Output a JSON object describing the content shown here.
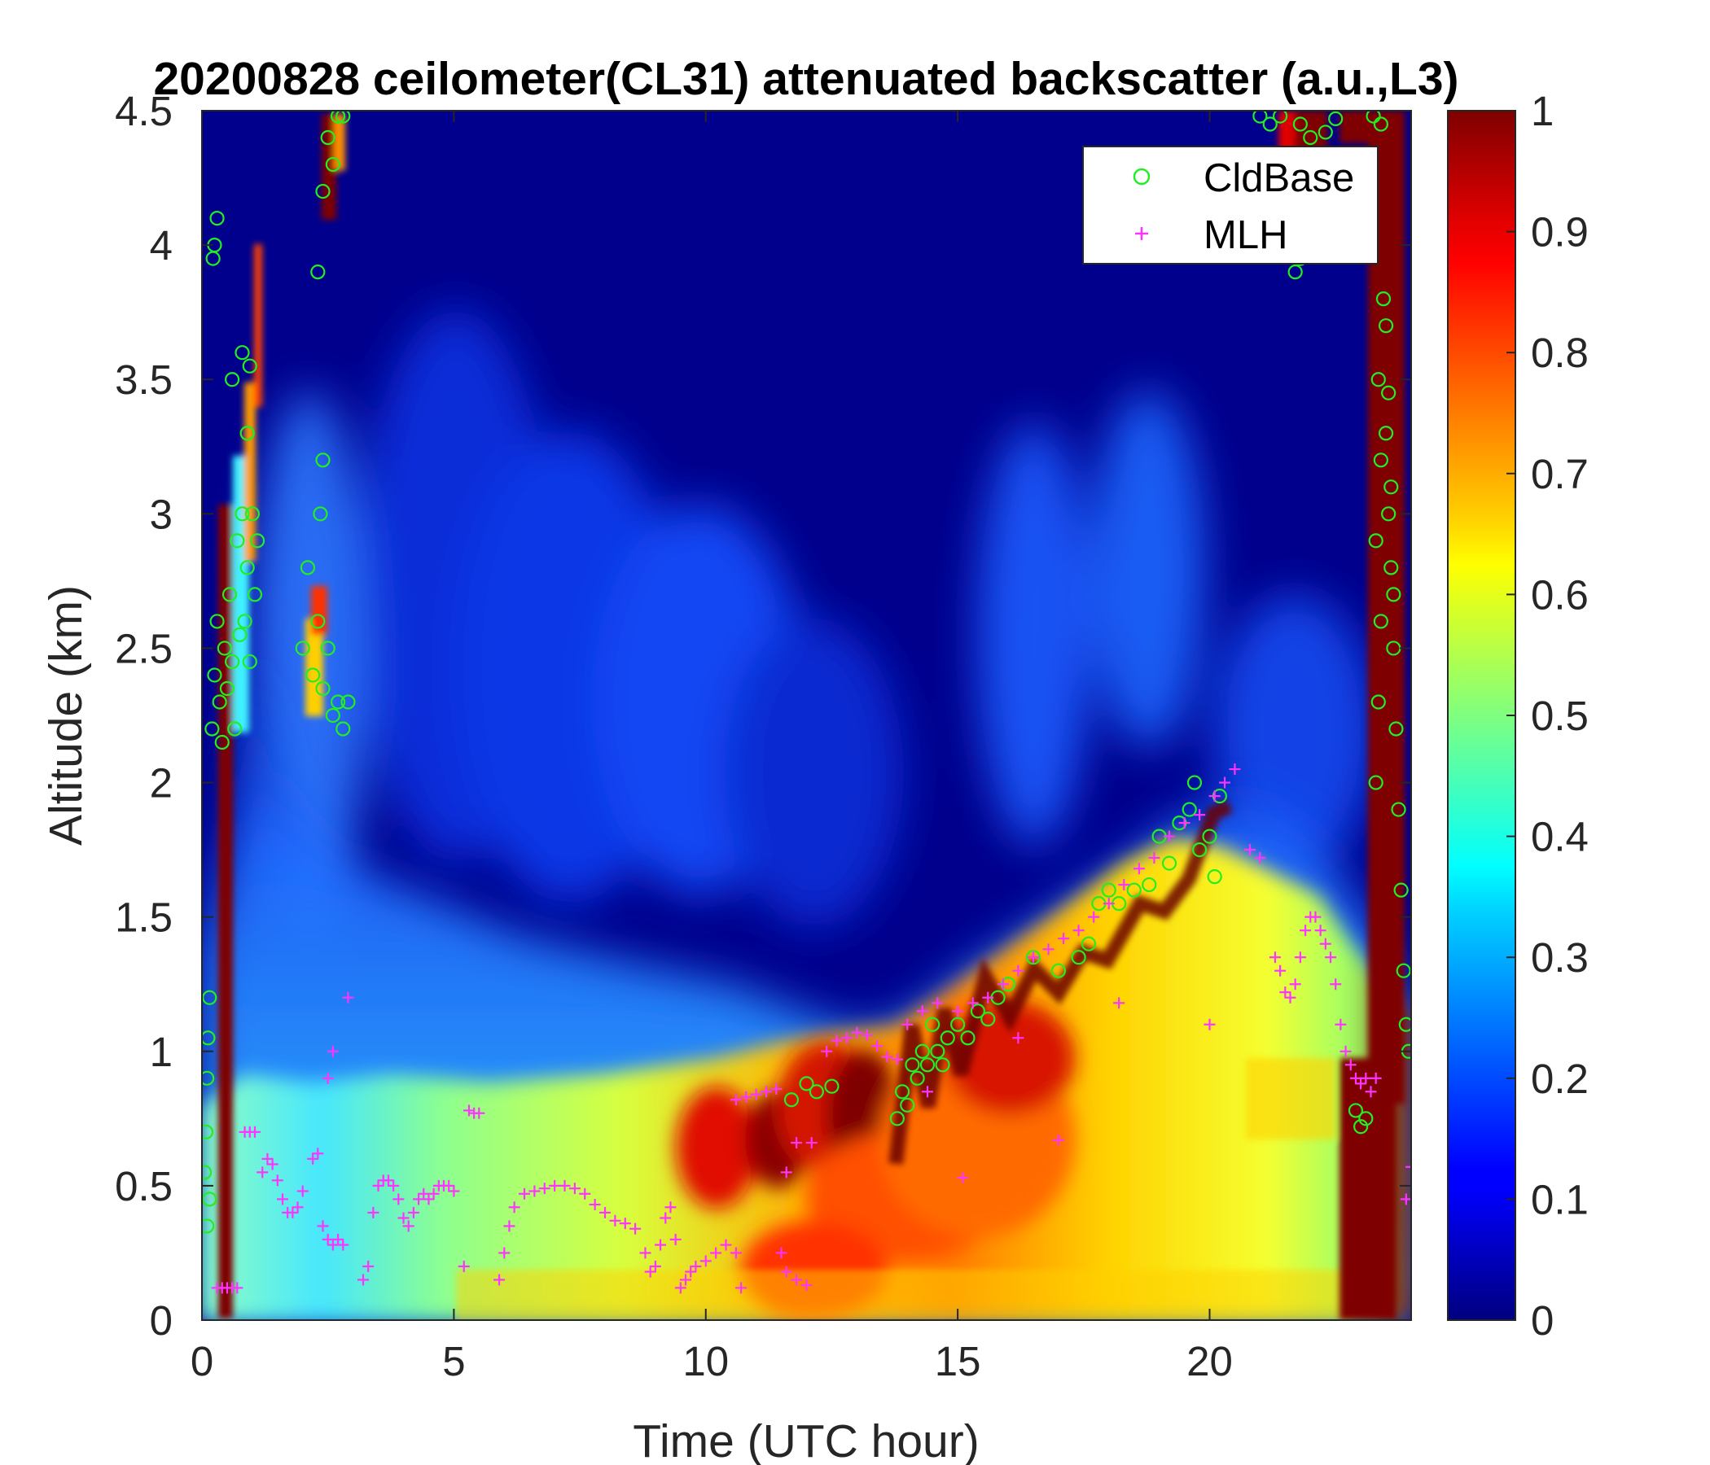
{
  "chart_data": {
    "type": "heatmap",
    "title": "20200828 ceilometer(CL31) attenuated backscatter (a.u.,L3)",
    "xlabel": "Time (UTC hour)",
    "ylabel": "Altitude (km)",
    "xlim": [
      0,
      24
    ],
    "ylim": [
      0,
      4.5
    ],
    "x_ticks": [
      "0",
      "5",
      "10",
      "15",
      "20"
    ],
    "y_ticks": [
      "0",
      "0.5",
      "1",
      "1.5",
      "2",
      "2.5",
      "3",
      "3.5",
      "4",
      "4.5"
    ],
    "colorbar": {
      "colormap": "jet",
      "range": [
        0,
        1
      ],
      "ticks": [
        "0",
        "0.1",
        "0.2",
        "0.3",
        "0.4",
        "0.5",
        "0.6",
        "0.7",
        "0.8",
        "0.9",
        "1"
      ]
    },
    "legend": {
      "placement": "top-right"
    },
    "series": [
      {
        "name": "CldBase",
        "marker": "circle",
        "color": "#22ee22",
        "points": [
          [
            0.05,
            0.55
          ],
          [
            0.08,
            0.7
          ],
          [
            0.1,
            0.9
          ],
          [
            0.12,
            1.05
          ],
          [
            0.15,
            1.2
          ],
          [
            0.1,
            0.35
          ],
          [
            0.15,
            0.45
          ],
          [
            0.2,
            2.2
          ],
          [
            0.25,
            2.4
          ],
          [
            0.3,
            2.6
          ],
          [
            0.35,
            2.3
          ],
          [
            0.4,
            2.15
          ],
          [
            0.45,
            2.5
          ],
          [
            0.5,
            2.35
          ],
          [
            0.55,
            2.7
          ],
          [
            0.6,
            2.45
          ],
          [
            0.65,
            2.2
          ],
          [
            0.7,
            2.9
          ],
          [
            0.75,
            2.55
          ],
          [
            0.8,
            3.0
          ],
          [
            0.85,
            2.6
          ],
          [
            0.9,
            2.8
          ],
          [
            0.95,
            2.45
          ],
          [
            1.0,
            3.0
          ],
          [
            1.05,
            2.7
          ],
          [
            1.1,
            2.9
          ],
          [
            0.25,
            4.0
          ],
          [
            0.3,
            4.1
          ],
          [
            0.22,
            3.95
          ],
          [
            0.6,
            3.5
          ],
          [
            0.8,
            3.6
          ],
          [
            0.9,
            3.3
          ],
          [
            0.95,
            3.55
          ],
          [
            2.0,
            2.5
          ],
          [
            2.1,
            2.8
          ],
          [
            2.2,
            2.4
          ],
          [
            2.3,
            2.6
          ],
          [
            2.4,
            2.35
          ],
          [
            2.5,
            2.5
          ],
          [
            2.6,
            2.25
          ],
          [
            2.7,
            2.3
          ],
          [
            2.8,
            2.2
          ],
          [
            2.9,
            2.3
          ],
          [
            2.35,
            3.0
          ],
          [
            2.4,
            3.2
          ],
          [
            2.3,
            3.9
          ],
          [
            2.4,
            4.2
          ],
          [
            2.5,
            4.4
          ],
          [
            2.6,
            4.3
          ],
          [
            2.7,
            4.48
          ],
          [
            2.8,
            4.48
          ],
          [
            11.7,
            0.82
          ],
          [
            12.0,
            0.88
          ],
          [
            12.2,
            0.85
          ],
          [
            12.5,
            0.87
          ],
          [
            13.8,
            0.75
          ],
          [
            13.9,
            0.85
          ],
          [
            14.0,
            0.8
          ],
          [
            14.1,
            0.95
          ],
          [
            14.2,
            0.9
          ],
          [
            14.3,
            1.0
          ],
          [
            14.4,
            0.95
          ],
          [
            14.5,
            1.1
          ],
          [
            14.6,
            1.0
          ],
          [
            14.7,
            0.95
          ],
          [
            14.8,
            1.05
          ],
          [
            15.0,
            1.1
          ],
          [
            15.2,
            1.05
          ],
          [
            15.4,
            1.15
          ],
          [
            15.6,
            1.12
          ],
          [
            15.8,
            1.2
          ],
          [
            16.0,
            1.25
          ],
          [
            16.5,
            1.35
          ],
          [
            17.0,
            1.3
          ],
          [
            17.4,
            1.35
          ],
          [
            17.6,
            1.4
          ],
          [
            17.8,
            1.55
          ],
          [
            18.0,
            1.6
          ],
          [
            18.2,
            1.55
          ],
          [
            18.5,
            1.6
          ],
          [
            18.8,
            1.62
          ],
          [
            19.0,
            1.8
          ],
          [
            19.2,
            1.7
          ],
          [
            19.4,
            1.85
          ],
          [
            19.6,
            1.9
          ],
          [
            19.8,
            1.75
          ],
          [
            20.0,
            1.8
          ],
          [
            20.1,
            1.65
          ],
          [
            19.7,
            2.0
          ],
          [
            20.2,
            1.95
          ],
          [
            21.0,
            4.48
          ],
          [
            21.2,
            4.45
          ],
          [
            21.4,
            4.48
          ],
          [
            21.8,
            4.45
          ],
          [
            22.0,
            4.4
          ],
          [
            22.3,
            4.42
          ],
          [
            22.5,
            4.47
          ],
          [
            21.7,
            3.9
          ],
          [
            21.8,
            3.95
          ],
          [
            22.9,
            0.78
          ],
          [
            23.0,
            0.72
          ],
          [
            23.1,
            0.75
          ],
          [
            23.3,
            2.0
          ],
          [
            23.35,
            2.3
          ],
          [
            23.4,
            2.6
          ],
          [
            23.3,
            2.9
          ],
          [
            23.4,
            3.2
          ],
          [
            23.35,
            3.5
          ],
          [
            23.45,
            3.8
          ],
          [
            23.5,
            3.3
          ],
          [
            23.55,
            3.0
          ],
          [
            23.6,
            2.8
          ],
          [
            23.65,
            2.5
          ],
          [
            23.7,
            2.2
          ],
          [
            23.75,
            1.9
          ],
          [
            23.8,
            1.6
          ],
          [
            23.85,
            1.3
          ],
          [
            23.9,
            1.1
          ],
          [
            23.95,
            1.0
          ],
          [
            23.5,
            3.7
          ],
          [
            23.55,
            3.45
          ],
          [
            23.6,
            3.1
          ],
          [
            23.65,
            2.7
          ],
          [
            23.4,
            4.45
          ],
          [
            23.25,
            4.48
          ]
        ]
      },
      {
        "name": "MLH",
        "marker": "plus",
        "color": "#ff33ff",
        "points": [
          [
            0.3,
            0.12
          ],
          [
            0.4,
            0.12
          ],
          [
            0.5,
            0.12
          ],
          [
            0.6,
            0.12
          ],
          [
            0.7,
            0.12
          ],
          [
            0.85,
            0.7
          ],
          [
            0.95,
            0.7
          ],
          [
            1.05,
            0.7
          ],
          [
            1.2,
            0.55
          ],
          [
            1.3,
            0.6
          ],
          [
            1.4,
            0.58
          ],
          [
            1.5,
            0.52
          ],
          [
            1.6,
            0.45
          ],
          [
            1.7,
            0.4
          ],
          [
            1.8,
            0.4
          ],
          [
            1.9,
            0.42
          ],
          [
            2.0,
            0.48
          ],
          [
            2.2,
            0.6
          ],
          [
            2.3,
            0.62
          ],
          [
            2.4,
            0.35
          ],
          [
            2.5,
            0.3
          ],
          [
            2.6,
            0.28
          ],
          [
            2.7,
            0.3
          ],
          [
            2.8,
            0.28
          ],
          [
            2.5,
            0.9
          ],
          [
            2.6,
            1.0
          ],
          [
            2.9,
            1.2
          ],
          [
            3.2,
            0.15
          ],
          [
            3.3,
            0.2
          ],
          [
            3.4,
            0.4
          ],
          [
            3.5,
            0.5
          ],
          [
            3.6,
            0.52
          ],
          [
            3.7,
            0.52
          ],
          [
            3.8,
            0.5
          ],
          [
            3.9,
            0.45
          ],
          [
            4.0,
            0.38
          ],
          [
            4.1,
            0.35
          ],
          [
            4.2,
            0.4
          ],
          [
            4.3,
            0.45
          ],
          [
            4.4,
            0.47
          ],
          [
            4.5,
            0.45
          ],
          [
            4.6,
            0.47
          ],
          [
            4.7,
            0.5
          ],
          [
            4.8,
            0.5
          ],
          [
            4.9,
            0.5
          ],
          [
            5.0,
            0.48
          ],
          [
            5.2,
            0.2
          ],
          [
            5.3,
            0.78
          ],
          [
            5.4,
            0.77
          ],
          [
            5.5,
            0.77
          ],
          [
            5.9,
            0.15
          ],
          [
            6.0,
            0.25
          ],
          [
            6.1,
            0.35
          ],
          [
            6.2,
            0.42
          ],
          [
            6.4,
            0.47
          ],
          [
            6.6,
            0.48
          ],
          [
            6.8,
            0.49
          ],
          [
            7.0,
            0.5
          ],
          [
            7.2,
            0.5
          ],
          [
            7.4,
            0.49
          ],
          [
            7.6,
            0.47
          ],
          [
            7.8,
            0.43
          ],
          [
            8.0,
            0.4
          ],
          [
            8.2,
            0.37
          ],
          [
            8.4,
            0.36
          ],
          [
            8.6,
            0.34
          ],
          [
            8.8,
            0.25
          ],
          [
            8.9,
            0.18
          ],
          [
            9.0,
            0.2
          ],
          [
            9.1,
            0.28
          ],
          [
            9.2,
            0.38
          ],
          [
            9.3,
            0.42
          ],
          [
            9.4,
            0.3
          ],
          [
            9.5,
            0.12
          ],
          [
            9.6,
            0.15
          ],
          [
            9.7,
            0.18
          ],
          [
            9.8,
            0.2
          ],
          [
            10.0,
            0.22
          ],
          [
            10.2,
            0.25
          ],
          [
            10.4,
            0.28
          ],
          [
            10.6,
            0.25
          ],
          [
            10.6,
            0.82
          ],
          [
            10.8,
            0.83
          ],
          [
            11.0,
            0.84
          ],
          [
            11.2,
            0.85
          ],
          [
            11.4,
            0.86
          ],
          [
            10.7,
            0.12
          ],
          [
            11.5,
            0.25
          ],
          [
            11.6,
            0.18
          ],
          [
            11.8,
            0.15
          ],
          [
            12.0,
            0.13
          ],
          [
            11.6,
            0.55
          ],
          [
            11.8,
            0.66
          ],
          [
            12.1,
            0.66
          ],
          [
            12.4,
            1.0
          ],
          [
            12.6,
            1.04
          ],
          [
            12.8,
            1.05
          ],
          [
            13.0,
            1.07
          ],
          [
            13.2,
            1.06
          ],
          [
            13.4,
            1.02
          ],
          [
            13.6,
            0.98
          ],
          [
            13.8,
            0.97
          ],
          [
            14.0,
            1.1
          ],
          [
            14.3,
            1.15
          ],
          [
            14.6,
            1.18
          ],
          [
            15.0,
            1.15
          ],
          [
            15.3,
            1.18
          ],
          [
            15.6,
            1.2
          ],
          [
            15.9,
            1.25
          ],
          [
            16.2,
            1.3
          ],
          [
            16.5,
            1.35
          ],
          [
            16.8,
            1.38
          ],
          [
            17.1,
            1.42
          ],
          [
            17.4,
            1.45
          ],
          [
            17.7,
            1.5
          ],
          [
            18.0,
            1.55
          ],
          [
            18.3,
            1.62
          ],
          [
            18.6,
            1.68
          ],
          [
            18.9,
            1.72
          ],
          [
            19.2,
            1.8
          ],
          [
            19.5,
            1.85
          ],
          [
            19.8,
            1.88
          ],
          [
            20.1,
            1.95
          ],
          [
            20.3,
            2.0
          ],
          [
            20.5,
            2.05
          ],
          [
            14.4,
            0.85
          ],
          [
            15.1,
            0.53
          ],
          [
            16.2,
            1.05
          ],
          [
            17.0,
            0.67
          ],
          [
            18.2,
            1.18
          ],
          [
            20.0,
            1.1
          ],
          [
            20.8,
            1.75
          ],
          [
            21.0,
            1.72
          ],
          [
            21.3,
            1.35
          ],
          [
            21.4,
            1.3
          ],
          [
            21.5,
            1.22
          ],
          [
            21.6,
            1.2
          ],
          [
            21.7,
            1.25
          ],
          [
            21.8,
            1.35
          ],
          [
            21.9,
            1.45
          ],
          [
            22.0,
            1.5
          ],
          [
            22.1,
            1.5
          ],
          [
            22.2,
            1.45
          ],
          [
            22.3,
            1.4
          ],
          [
            22.4,
            1.35
          ],
          [
            22.5,
            1.25
          ],
          [
            22.6,
            1.1
          ],
          [
            22.7,
            1.0
          ],
          [
            22.8,
            0.95
          ],
          [
            22.9,
            0.9
          ],
          [
            23.0,
            0.88
          ],
          [
            23.1,
            0.9
          ],
          [
            23.2,
            0.85
          ],
          [
            23.3,
            0.9
          ],
          [
            24.0,
            0.57
          ],
          [
            23.9,
            0.45
          ]
        ]
      }
    ]
  }
}
